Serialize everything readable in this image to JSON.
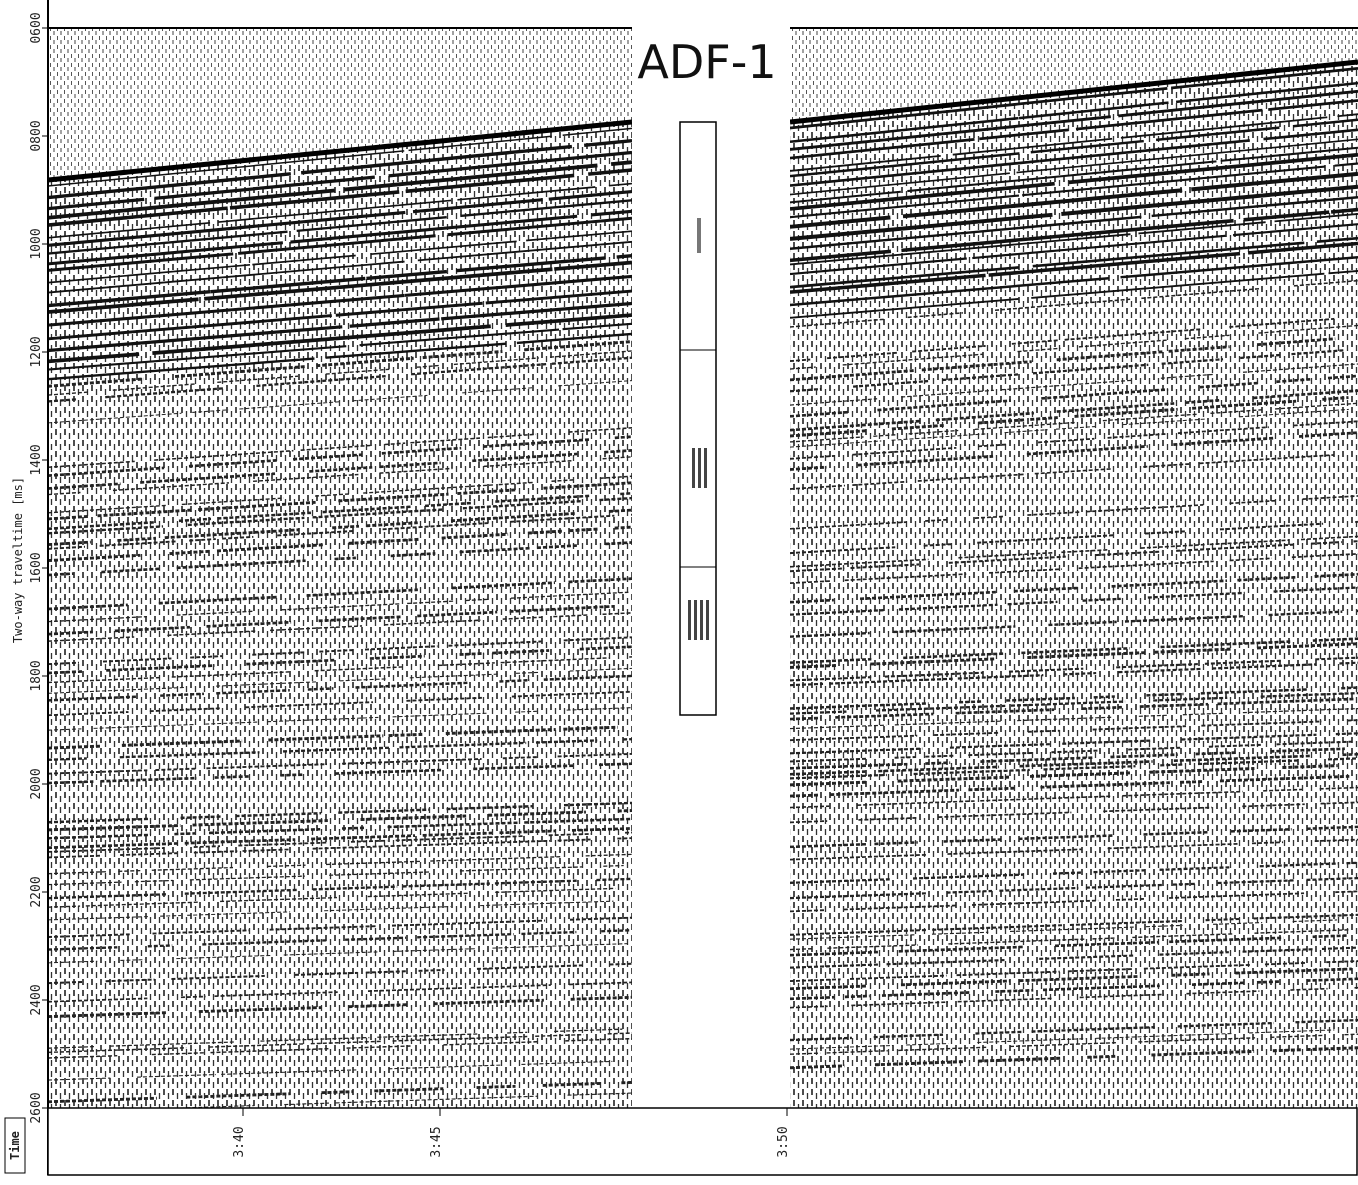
{
  "chart_data": {
    "type": "seismic",
    "title": "ADF-1",
    "y_label": "Two-way traveltime [ms]",
    "x_label": "Time",
    "ylim": [
      600,
      2600
    ],
    "yticks": [
      {
        "value": 600,
        "label": "0600"
      },
      {
        "value": 800,
        "label": "0800"
      },
      1000,
      1200,
      1400,
      1600,
      1800,
      2000,
      2200,
      2400,
      2600
    ],
    "categories": [
      "3:40",
      "3:45",
      "3:50"
    ]
  }
}
